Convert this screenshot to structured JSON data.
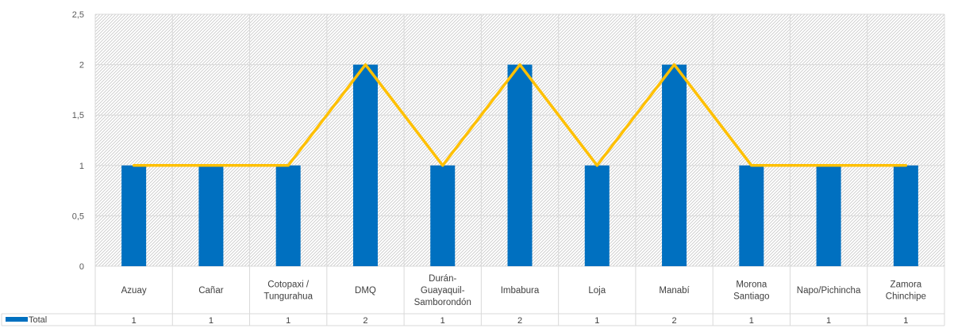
{
  "chart_data": {
    "type": "bar",
    "categories": [
      [
        "Azuay"
      ],
      [
        "Cañar"
      ],
      [
        "Cotopaxi /",
        "Tungurahua"
      ],
      [
        "DMQ"
      ],
      [
        "Durán-",
        "Guayaquil-",
        "Samborondón"
      ],
      [
        "Imbabura"
      ],
      [
        "Loja"
      ],
      [
        "Manabí"
      ],
      [
        "Morona",
        "Santiago"
      ],
      [
        "Napo/Pichincha"
      ],
      [
        "Zamora",
        "Chinchipe"
      ]
    ],
    "series": [
      {
        "name": "Total",
        "type": "bar",
        "values": [
          1,
          1,
          1,
          2,
          1,
          2,
          1,
          2,
          1,
          1,
          1
        ],
        "color": "#0070C0"
      },
      {
        "type": "line",
        "values": [
          1,
          1,
          1,
          2,
          1,
          2,
          1,
          2,
          1,
          1,
          1
        ],
        "color": "#FFC000"
      }
    ],
    "yticks": [
      "0",
      "0,5",
      "1",
      "1,5",
      "2",
      "2,5"
    ],
    "ylim": [
      0,
      2.5
    ],
    "table_values": [
      "1",
      "1",
      "1",
      "2",
      "1",
      "2",
      "1",
      "2",
      "1",
      "1",
      "1"
    ],
    "grid": true,
    "legend": "data-table",
    "title": "",
    "xlabel": "",
    "ylabel": ""
  }
}
